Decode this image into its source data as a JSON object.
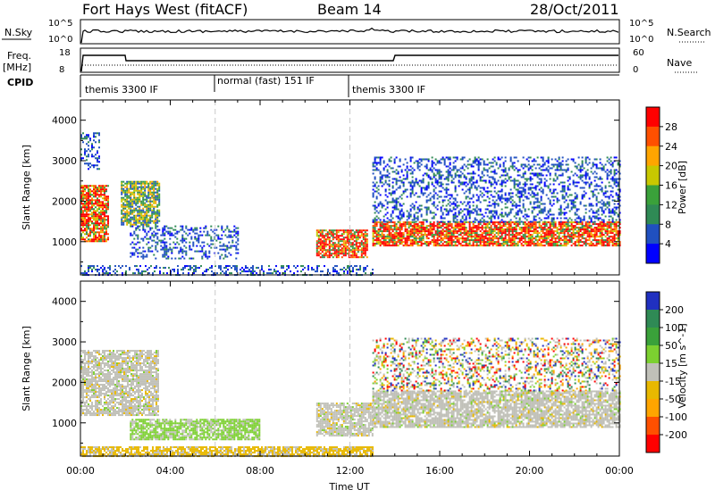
{
  "header": {
    "station": "Fort Hays West (fitACF)",
    "beam": "Beam 14",
    "date": "28/Oct/2011"
  },
  "noise_panel": {
    "left_label": "N.Sky",
    "right_label": "N.Search",
    "left_ticks": [
      "10^5",
      "10^0"
    ],
    "right_ticks": [
      "10^5",
      "10^0"
    ]
  },
  "freq_panel": {
    "left_label": "Freq.",
    "left_unit": "[MHz]",
    "left_ticks": [
      "18",
      "8"
    ],
    "right_label": "Nave",
    "right_ticks": [
      "60",
      "0"
    ]
  },
  "cpid_panel": {
    "label": "CPID",
    "segments": [
      {
        "label": "themis 3300 IF",
        "start_hour": 0
      },
      {
        "label": "normal (fast) 151 IF",
        "start_hour": 6
      },
      {
        "label": "themis 3300 IF",
        "start_hour": 12
      }
    ]
  },
  "chart_data": [
    {
      "type": "heatmap",
      "name": "power",
      "ylabel": "Slant Range [km]",
      "xlabel": "",
      "ylim": [
        180,
        4500
      ],
      "xlim_hours": [
        0,
        24
      ],
      "yticks": [
        1000,
        2000,
        3000,
        4000
      ],
      "colorbar": {
        "label": "Power [dB]",
        "ticks": [
          "4",
          "8",
          "12",
          "16",
          "20",
          "24",
          "28"
        ],
        "colors": [
          "#0000ff",
          "#2050c0",
          "#2f8a55",
          "#3aa13a",
          "#c8c800",
          "#ffa500",
          "#ff5000",
          "#ff0000"
        ]
      },
      "features": [
        {
          "start_hour": 0.0,
          "end_hour": 1.2,
          "range_min": 1000,
          "range_max": 2400,
          "level": "high"
        },
        {
          "start_hour": 0.0,
          "end_hour": 0.8,
          "range_min": 2800,
          "range_max": 3700,
          "level": "low"
        },
        {
          "start_hour": 1.8,
          "end_hour": 3.5,
          "range_min": 1400,
          "range_max": 2500,
          "level": "mid"
        },
        {
          "start_hour": 2.2,
          "end_hour": 7.0,
          "range_min": 600,
          "range_max": 1400,
          "level": "low"
        },
        {
          "start_hour": 10.5,
          "end_hour": 12.8,
          "range_min": 600,
          "range_max": 1300,
          "level": "high"
        },
        {
          "start_hour": 13.0,
          "end_hour": 24.0,
          "range_min": 900,
          "range_max": 1500,
          "level": "high"
        },
        {
          "start_hour": 13.0,
          "end_hour": 24.0,
          "range_min": 1500,
          "range_max": 3100,
          "level": "low"
        },
        {
          "start_hour": 0.0,
          "end_hour": 13.0,
          "range_min": 180,
          "range_max": 420,
          "level": "low"
        }
      ]
    },
    {
      "type": "heatmap",
      "name": "velocity",
      "ylabel": "Slant Range [km]",
      "xlabel": "Time UT",
      "ylim": [
        180,
        4500
      ],
      "xlim_hours": [
        0,
        24
      ],
      "yticks": [
        1000,
        2000,
        3000,
        4000
      ],
      "xticks": [
        "00:00",
        "04:00",
        "08:00",
        "12:00",
        "16:00",
        "20:00",
        "00:00"
      ],
      "colorbar": {
        "label": "Velocity [m s^-1]",
        "ticks": [
          "200",
          "100",
          "50",
          "15",
          "-15",
          "-50",
          "-100",
          "-200"
        ],
        "colors": [
          "#2030c0",
          "#2f8a55",
          "#3aa13a",
          "#7cd030",
          "#c0c0b8",
          "#e8b800",
          "#ffa500",
          "#ff5000",
          "#ff0000"
        ]
      },
      "features": [
        {
          "start_hour": 0.0,
          "end_hour": 3.5,
          "range_min": 1200,
          "range_max": 2800,
          "level": "ground"
        },
        {
          "start_hour": 2.2,
          "end_hour": 8.0,
          "range_min": 600,
          "range_max": 1100,
          "level": "green"
        },
        {
          "start_hour": 10.5,
          "end_hour": 13.0,
          "range_min": 700,
          "range_max": 1500,
          "level": "ground"
        },
        {
          "start_hour": 13.0,
          "end_hour": 24.0,
          "range_min": 900,
          "range_max": 1800,
          "level": "ground"
        },
        {
          "start_hour": 13.0,
          "end_hour": 24.0,
          "range_min": 1800,
          "range_max": 3100,
          "level": "scatter"
        },
        {
          "start_hour": 0.0,
          "end_hour": 13.0,
          "range_min": 180,
          "range_max": 420,
          "level": "orange"
        }
      ]
    }
  ]
}
